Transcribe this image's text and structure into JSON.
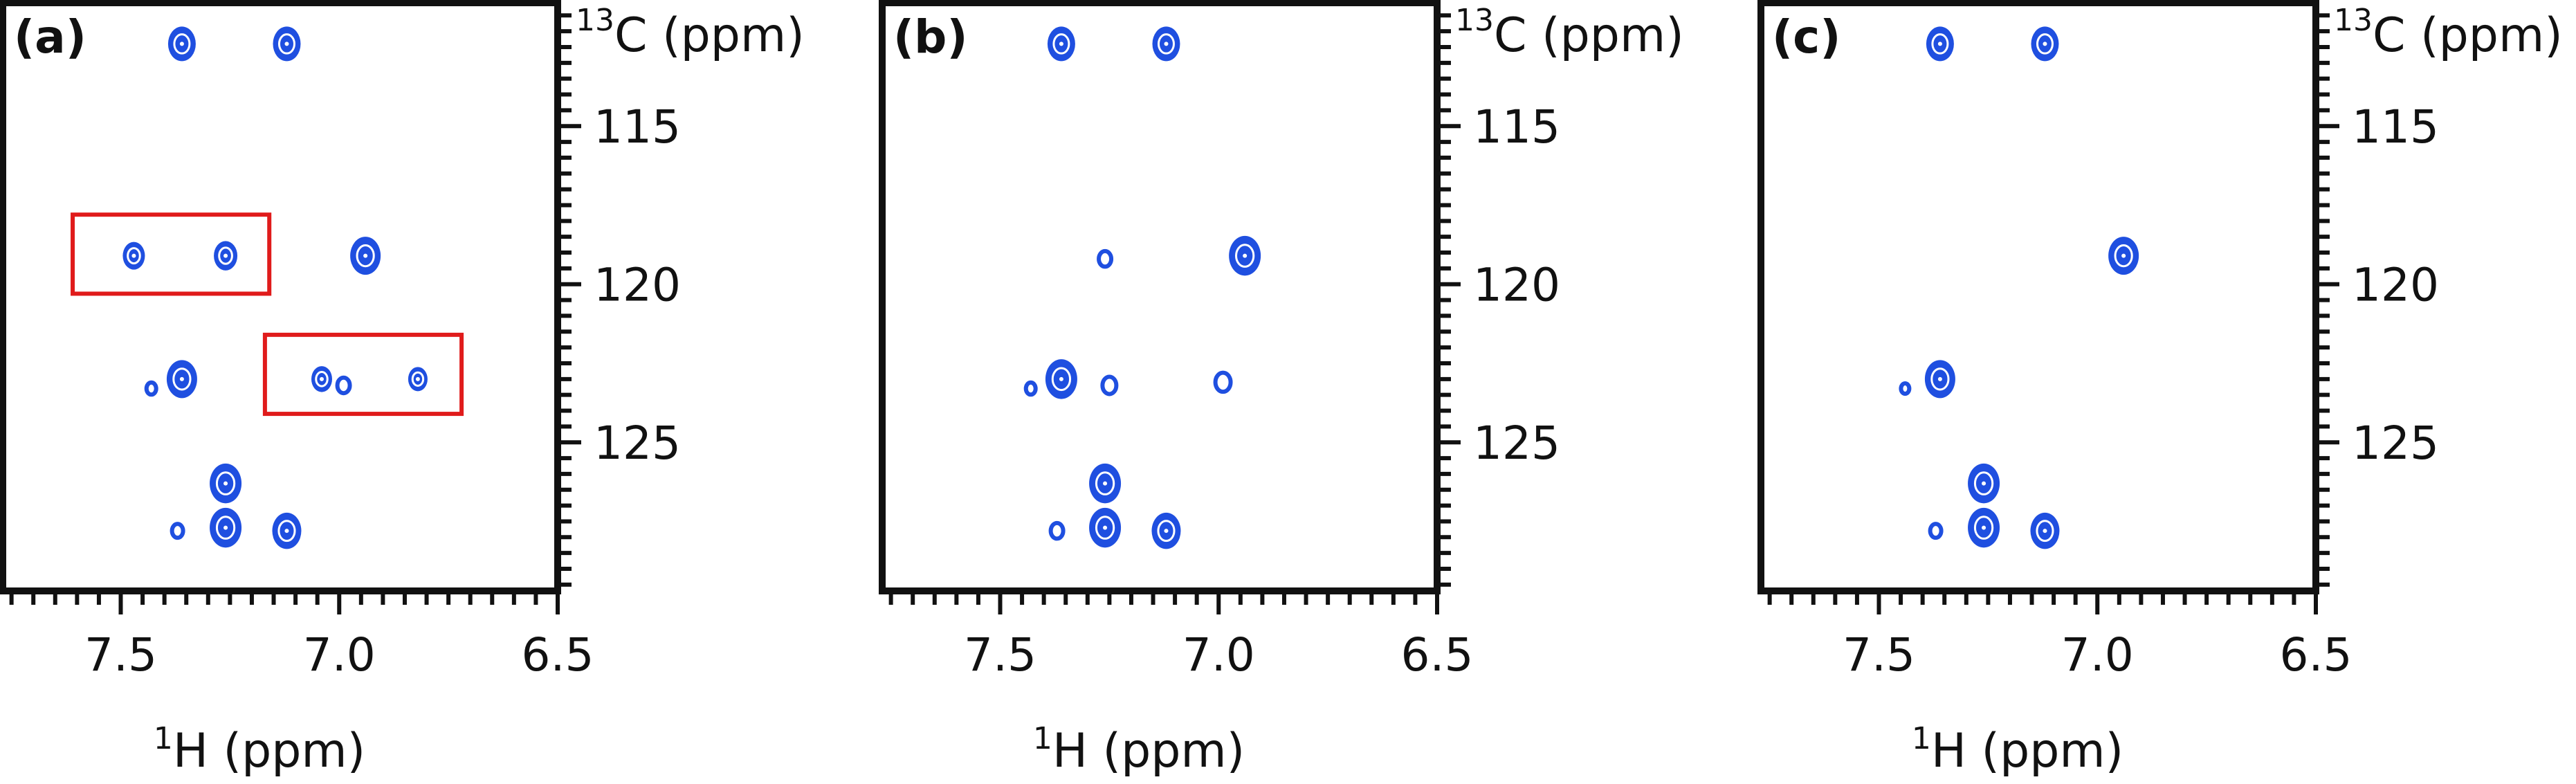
{
  "chart_data": {
    "type": "contour",
    "colors": {
      "contour": "#1f4fe0",
      "highlight_box": "#e01b1b",
      "frame": "#111111"
    },
    "x_axis": {
      "label_prefix": "1",
      "label_main": "H (ppm)",
      "ticks": [
        "7.5",
        "7.0",
        "6.5"
      ],
      "range": [
        7.77,
        6.5
      ],
      "reversed": true,
      "minor_tick_step": 0.05
    },
    "y_axis": {
      "label_prefix": "13",
      "label_main": "C (ppm)",
      "ticks": [
        "115",
        "120",
        "125"
      ],
      "range": [
        111.1,
        129.7
      ],
      "reversed": true,
      "position": "right",
      "minor_tick_step": 0.5
    },
    "panels": [
      {
        "label": "(a)",
        "peaks": [
          {
            "h": 7.36,
            "c": 112.4,
            "r": 1.0
          },
          {
            "h": 7.12,
            "c": 112.4,
            "r": 1.0
          },
          {
            "h": 7.47,
            "c": 119.1,
            "r": 0.8
          },
          {
            "h": 7.26,
            "c": 119.1,
            "r": 0.85
          },
          {
            "h": 6.94,
            "c": 119.1,
            "r": 1.1
          },
          {
            "h": 7.36,
            "c": 123.0,
            "r": 1.1
          },
          {
            "h": 7.43,
            "c": 123.3,
            "r": 0.35
          },
          {
            "h": 7.04,
            "c": 123.0,
            "r": 0.75
          },
          {
            "h": 6.99,
            "c": 123.2,
            "r": 0.45
          },
          {
            "h": 6.82,
            "c": 123.0,
            "r": 0.7
          },
          {
            "h": 7.26,
            "c": 126.3,
            "r": 1.15
          },
          {
            "h": 7.26,
            "c": 127.7,
            "r": 1.15
          },
          {
            "h": 7.12,
            "c": 127.8,
            "r": 1.05
          },
          {
            "h": 7.37,
            "c": 127.8,
            "r": 0.4
          }
        ],
        "highlight_boxes": [
          {
            "h_from": 7.61,
            "h_to": 7.16,
            "c_from": 117.8,
            "c_to": 120.3
          },
          {
            "h_from": 7.17,
            "h_to": 6.72,
            "c_from": 121.6,
            "c_to": 124.1
          }
        ]
      },
      {
        "label": "(b)",
        "peaks": [
          {
            "h": 7.36,
            "c": 112.4,
            "r": 1.0
          },
          {
            "h": 7.12,
            "c": 112.4,
            "r": 1.0
          },
          {
            "h": 7.26,
            "c": 119.2,
            "r": 0.45
          },
          {
            "h": 6.94,
            "c": 119.1,
            "r": 1.15
          },
          {
            "h": 7.36,
            "c": 123.0,
            "r": 1.15
          },
          {
            "h": 7.43,
            "c": 123.3,
            "r": 0.35
          },
          {
            "h": 7.25,
            "c": 123.2,
            "r": 0.5
          },
          {
            "h": 6.99,
            "c": 123.1,
            "r": 0.55
          },
          {
            "h": 7.26,
            "c": 126.3,
            "r": 1.15
          },
          {
            "h": 7.26,
            "c": 127.7,
            "r": 1.15
          },
          {
            "h": 7.12,
            "c": 127.8,
            "r": 1.05
          },
          {
            "h": 7.37,
            "c": 127.8,
            "r": 0.45
          }
        ],
        "highlight_boxes": []
      },
      {
        "label": "(c)",
        "peaks": [
          {
            "h": 7.36,
            "c": 112.4,
            "r": 1.0
          },
          {
            "h": 7.12,
            "c": 112.4,
            "r": 1.0
          },
          {
            "h": 6.94,
            "c": 119.1,
            "r": 1.1
          },
          {
            "h": 7.36,
            "c": 123.0,
            "r": 1.1
          },
          {
            "h": 7.44,
            "c": 123.3,
            "r": 0.3
          },
          {
            "h": 7.26,
            "c": 126.3,
            "r": 1.15
          },
          {
            "h": 7.26,
            "c": 127.7,
            "r": 1.15
          },
          {
            "h": 7.12,
            "c": 127.8,
            "r": 1.05
          },
          {
            "h": 7.37,
            "c": 127.8,
            "r": 0.4
          }
        ],
        "highlight_boxes": []
      }
    ]
  }
}
